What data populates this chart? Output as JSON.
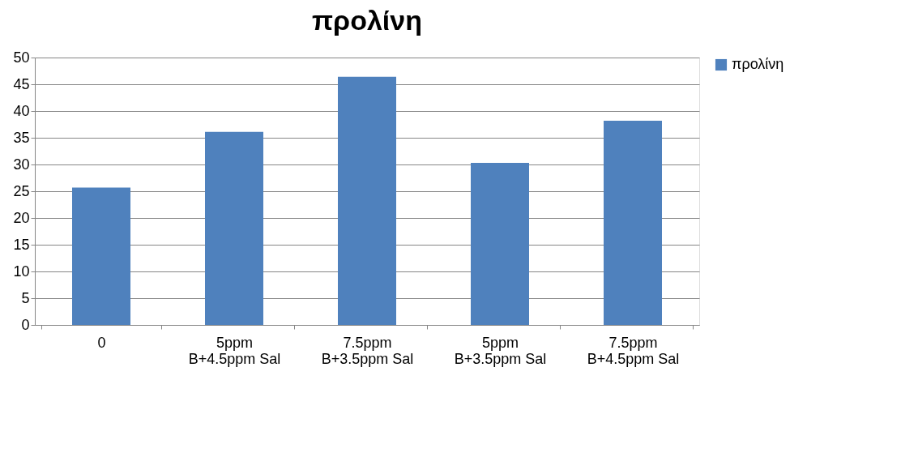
{
  "chart_data": {
    "type": "bar",
    "title": "προλίνη",
    "categories": [
      "0",
      "5ppm\nB+4.5ppm Sal",
      "7.5ppm\nB+3.5ppm Sal",
      "5ppm\nB+3.5ppm Sal",
      "7.5ppm\nB+4.5ppm Sal"
    ],
    "series": [
      {
        "name": "προλίνη",
        "color": "#4f81bd",
        "values": [
          25.7,
          36.1,
          46.4,
          30.3,
          38.2
        ]
      }
    ],
    "ylim": [
      0,
      50
    ],
    "yticks": [
      0,
      5,
      10,
      15,
      20,
      25,
      30,
      35,
      40,
      45,
      50
    ],
    "grid": "y",
    "legend": "right"
  }
}
